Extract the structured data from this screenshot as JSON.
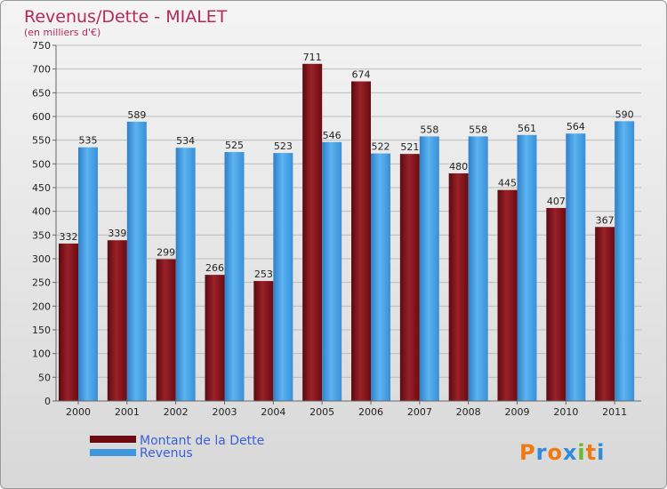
{
  "chart_data": {
    "type": "bar",
    "title": "Revenus/Dette - MIALET",
    "subtitle": "(en milliers d'€)",
    "categories": [
      "2000",
      "2001",
      "2002",
      "2003",
      "2004",
      "2005",
      "2006",
      "2007",
      "2008",
      "2009",
      "2010",
      "2011"
    ],
    "series": [
      {
        "name": "Montant de la Dette",
        "color": "#7a0d14",
        "values": [
          332,
          339,
          299,
          266,
          253,
          711,
          674,
          521,
          480,
          445,
          407,
          367
        ]
      },
      {
        "name": "Revenus",
        "color": "#4aa3e8",
        "values": [
          535,
          589,
          534,
          525,
          523,
          546,
          522,
          558,
          558,
          561,
          564,
          590
        ]
      }
    ],
    "ylim": [
      0,
      750
    ],
    "yticks": [
      0,
      50,
      100,
      150,
      200,
      250,
      300,
      350,
      400,
      450,
      500,
      550,
      600,
      650,
      700,
      750
    ],
    "grid": true,
    "legend_position": "bottom-left"
  },
  "logo": {
    "text": "Proxiti"
  }
}
